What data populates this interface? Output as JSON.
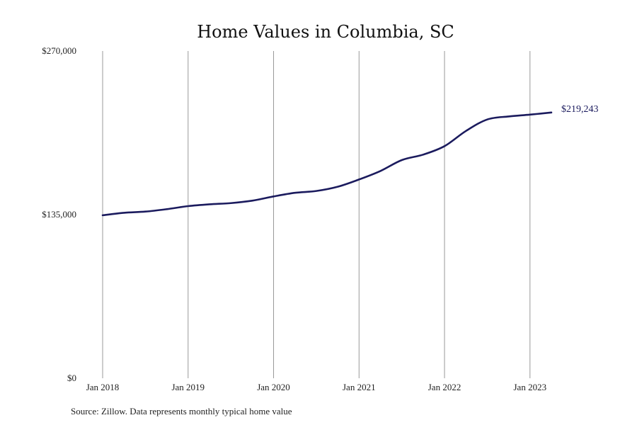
{
  "chart_data": {
    "type": "line",
    "title": "Home Values in Columbia, SC",
    "source": "Source: Zillow. Data represents monthly typical home value",
    "y_tick_labels": [
      "$0",
      "$135,000",
      "$270,000"
    ],
    "y_ticks": [
      0,
      135000,
      270000
    ],
    "ylim": [
      0,
      270000
    ],
    "x_tick_labels": [
      "Jan 2018",
      "Jan 2019",
      "Jan 2020",
      "Jan 2021",
      "Jan 2022",
      "Jan 2023"
    ],
    "x_ticks": [
      "2018-01",
      "2019-01",
      "2020-01",
      "2021-01",
      "2022-01",
      "2023-01"
    ],
    "xlim": [
      "2018-01",
      "2023-04"
    ],
    "grid": "vertical",
    "line_color": "#1b1b5e",
    "grid_color": "#999999",
    "end_label": "$219,243",
    "series": [
      {
        "x": [
          "2018-01",
          "2018-04",
          "2018-07",
          "2018-10",
          "2019-01",
          "2019-04",
          "2019-07",
          "2019-10",
          "2020-01",
          "2020-04",
          "2020-07",
          "2020-10",
          "2021-01",
          "2021-04",
          "2021-07",
          "2021-10",
          "2022-01",
          "2022-04",
          "2022-07",
          "2022-10",
          "2023-01",
          "2023-04"
        ],
        "values": [
          134500,
          136500,
          137500,
          139500,
          142000,
          143500,
          144500,
          146500,
          150000,
          153000,
          154500,
          158000,
          164000,
          171000,
          180000,
          184500,
          191500,
          204000,
          213500,
          216000,
          217500,
          219243
        ]
      }
    ]
  }
}
